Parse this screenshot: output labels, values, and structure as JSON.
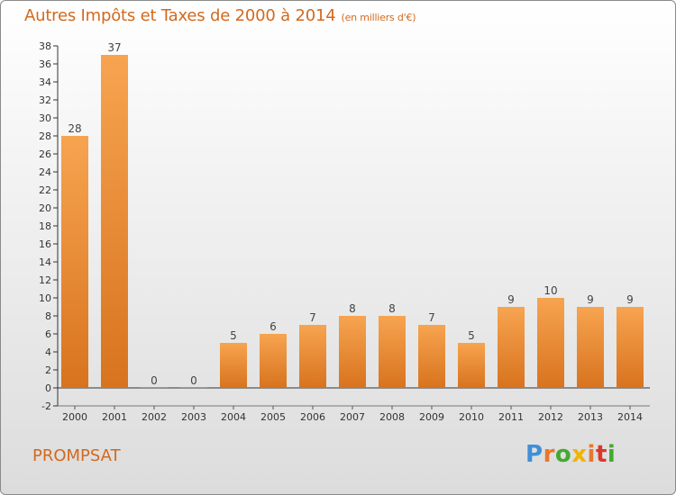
{
  "header": {
    "title": "Autres Impôts et Taxes de 2000 à 2014",
    "subtitle": "(en milliers d'€)"
  },
  "footer": {
    "town": "PROMPSAT",
    "logo_letters": [
      "P",
      "r",
      "o",
      "x",
      "i",
      "t",
      "i"
    ]
  },
  "colors": {
    "bar_light": "#f7a450",
    "bar_dark": "#d8731e",
    "text_accent": "#d2691e"
  },
  "chart_data": {
    "type": "bar",
    "title": "Autres Impôts et Taxes de 2000 à 2014",
    "subtitle": "(en milliers d'€)",
    "xlabel": "",
    "ylabel": "",
    "categories": [
      "2000",
      "2001",
      "2002",
      "2003",
      "2004",
      "2005",
      "2006",
      "2007",
      "2008",
      "2009",
      "2010",
      "2011",
      "2012",
      "2013",
      "2014"
    ],
    "values": [
      28,
      37,
      0,
      0,
      5,
      6,
      7,
      8,
      8,
      7,
      5,
      9,
      10,
      9,
      9
    ],
    "ylim": [
      -2,
      38
    ],
    "yticks": [
      -2,
      0,
      2,
      4,
      6,
      8,
      10,
      12,
      14,
      16,
      18,
      20,
      22,
      24,
      26,
      28,
      30,
      32,
      34,
      36,
      38
    ],
    "grid": false,
    "legend": "none"
  }
}
